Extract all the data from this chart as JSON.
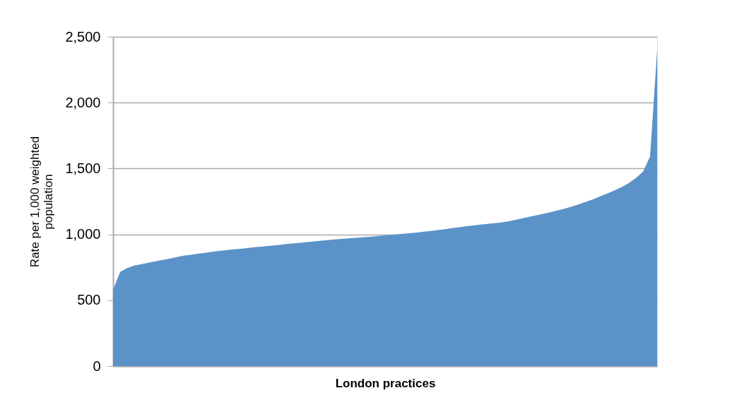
{
  "chart_data": {
    "type": "area",
    "xlabel": "London practices",
    "ylabel": "Rate per 1,000 weighted population",
    "categories": [
      null,
      null,
      null,
      null,
      null,
      null,
      null,
      null,
      null,
      null,
      null,
      null,
      null,
      null,
      null,
      null,
      null,
      null,
      null,
      null,
      null,
      null,
      null,
      null,
      null,
      null,
      null,
      null,
      null,
      null,
      null,
      null,
      null,
      null,
      null,
      null,
      null,
      null,
      null,
      null,
      null,
      null,
      null,
      null,
      null,
      null,
      null,
      null,
      null,
      null,
      null,
      null,
      null,
      null,
      null,
      null,
      null,
      null,
      null,
      null,
      null,
      null,
      null,
      null,
      null,
      null,
      null,
      null,
      null,
      null,
      null,
      null,
      null,
      null,
      null,
      null,
      null,
      null
    ],
    "series": [
      {
        "color": "#5b92c8",
        "values": [
          580,
          715,
          745,
          763,
          774,
          784,
          795,
          806,
          816,
          828,
          838,
          845,
          853,
          860,
          868,
          874,
          880,
          886,
          891,
          896,
          902,
          907,
          912,
          918,
          923,
          929,
          934,
          939,
          944,
          950,
          955,
          960,
          964,
          968,
          972,
          977,
          981,
          985,
          990,
          994,
          999,
          1004,
          1009,
          1014,
          1020,
          1026,
          1033,
          1040,
          1047,
          1054,
          1062,
          1068,
          1074,
          1080,
          1085,
          1090,
          1100,
          1110,
          1122,
          1134,
          1145,
          1158,
          1170,
          1183,
          1197,
          1213,
          1230,
          1248,
          1268,
          1290,
          1312,
          1334,
          1360,
          1390,
          1428,
          1475,
          1590,
          2400
        ]
      }
    ],
    "ylim": [
      0,
      2500
    ],
    "yticks": [
      0,
      500,
      {
        "value": 1000,
        "label": "1,000"
      },
      {
        "value": 1500,
        "label": "1,500"
      },
      {
        "value": 2000,
        "label": "2,000"
      },
      {
        "value": 2500,
        "label": "2,500"
      }
    ],
    "grid": "y"
  }
}
